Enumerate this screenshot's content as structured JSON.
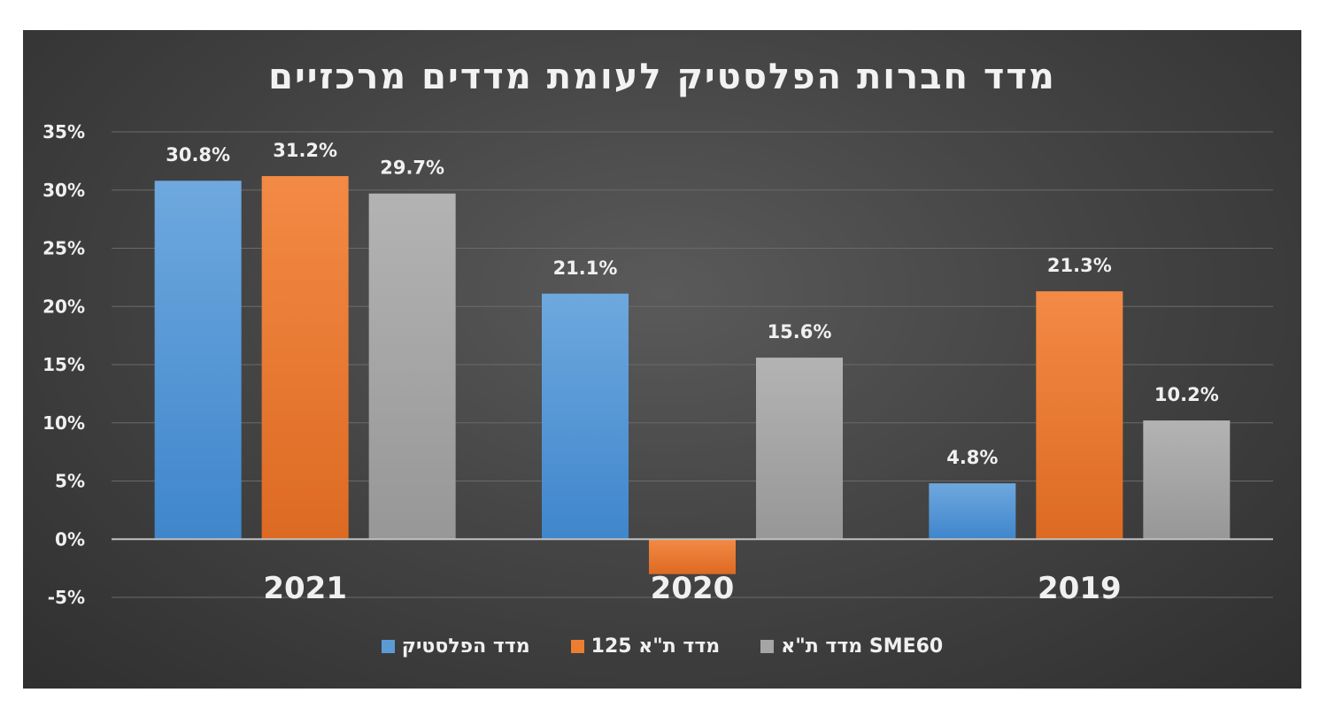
{
  "chart_data": {
    "type": "bar",
    "title": "מדד חברות הפלסטיק לעומת מדדים מרכזיים",
    "categories": [
      "2021",
      "2020",
      "2019"
    ],
    "series": [
      {
        "name": "מדד הפלסטיק",
        "values": [
          30.8,
          21.1,
          4.8
        ],
        "labels": [
          "30.8%",
          "21.1%",
          "4.8%"
        ],
        "color": "#5b9bd5"
      },
      {
        "name": "מדד ת\"א 125",
        "values": [
          31.2,
          -3.0,
          21.3
        ],
        "labels": [
          "31.2%",
          "",
          "21.3%"
        ],
        "color": "#ed7d31"
      },
      {
        "name": "מדד ת\"א SME60",
        "values": [
          29.7,
          15.6,
          10.2
        ],
        "labels": [
          "29.7%",
          "15.6%",
          "10.2%"
        ],
        "color": "#a5a5a5"
      }
    ],
    "y_ticks": [
      "-5%",
      "0%",
      "5%",
      "10%",
      "15%",
      "20%",
      "25%",
      "30%",
      "35%"
    ],
    "ylim": [
      -5,
      35
    ],
    "grid": true,
    "legend_position": "bottom",
    "background": "#404040"
  }
}
